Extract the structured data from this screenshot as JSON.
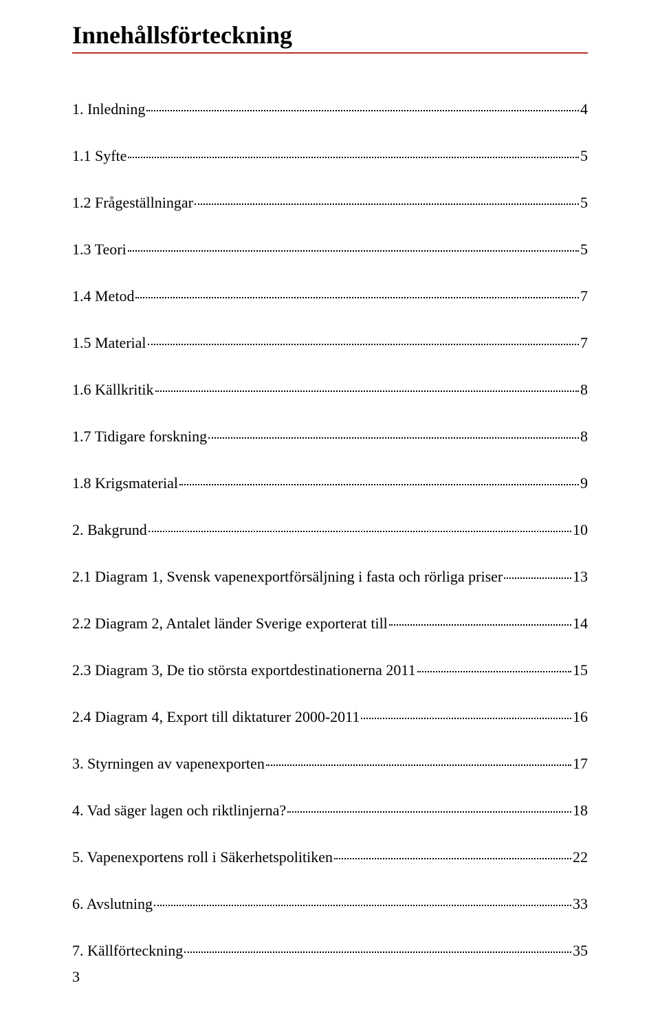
{
  "title": "Innehållsförteckning",
  "rule_color": "#b9322c",
  "page_number": "3",
  "toc": [
    {
      "text": "1. Inledning",
      "page": "4"
    },
    {
      "text": "1.1 Syfte",
      "page": "5"
    },
    {
      "text": "1.2 Frågeställningar",
      "page": "5"
    },
    {
      "text": "1.3 Teori",
      "page": "5"
    },
    {
      "text": "1.4 Metod",
      "page": "7"
    },
    {
      "text": "1.5 Material",
      "page": "7"
    },
    {
      "text": "1.6 Källkritik",
      "page": "8"
    },
    {
      "text": "1.7 Tidigare forskning",
      "page": "8"
    },
    {
      "text": "1.8 Krigsmaterial",
      "page": "9"
    },
    {
      "text": "2. Bakgrund",
      "page": "10"
    },
    {
      "text": "2.1 Diagram 1, Svensk vapenexportförsäljning i fasta och rörliga priser",
      "page": "13"
    },
    {
      "text": "2.2 Diagram 2, Antalet länder Sverige exporterat till",
      "page": "14"
    },
    {
      "text": "2.3 Diagram 3, De tio största exportdestinationerna 2011",
      "page": "15"
    },
    {
      "text": "2.4 Diagram 4, Export till diktaturer 2000-2011",
      "page": "16"
    },
    {
      "text": "3. Styrningen av vapenexporten",
      "page": "17"
    },
    {
      "text": "4. Vad säger lagen och riktlinjerna?",
      "page": "18"
    },
    {
      "text": "5. Vapenexportens roll i Säkerhetspolitiken",
      "page": "22"
    },
    {
      "text": "6. Avslutning",
      "page": "33"
    },
    {
      "text": "7. Källförteckning",
      "page": "35"
    }
  ]
}
